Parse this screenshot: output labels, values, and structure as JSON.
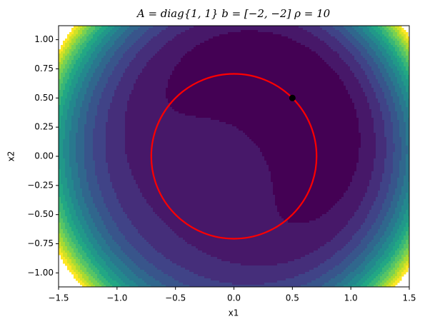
{
  "chart_data": {
    "type": "contour",
    "title": "A = diag{1, 1}      b = [−2, −2]      ρ = 10",
    "x_label": "x1",
    "y_label": "x2",
    "xlim": [
      -1.5,
      1.5
    ],
    "ylim": [
      -1.12,
      1.12
    ],
    "xticks": [
      {
        "value": -1.5,
        "label": "−1.5"
      },
      {
        "value": -1,
        "label": "−1.0"
      },
      {
        "value": -0.5,
        "label": "−0.5"
      },
      {
        "value": 0,
        "label": "0.0"
      },
      0.5,
      {
        "value": 1,
        "label": "1.0"
      },
      1.5
    ],
    "yticks": [
      {
        "value": -1,
        "label": "−1.00"
      },
      {
        "value": -0.75,
        "label": "−0.75"
      },
      {
        "value": -0.5,
        "label": "−0.50"
      },
      {
        "value": -0.25,
        "label": "−0.25"
      },
      {
        "value": 0,
        "label": "0.00"
      },
      0.25,
      {
        "value": 0.5,
        "label": "0.50"
      },
      0.75,
      {
        "value": 1,
        "label": "1.00"
      }
    ],
    "circle": {
      "center": [
        0,
        0
      ],
      "radius": 0.707,
      "color": "#ff0000"
    },
    "point": {
      "x": 0.5,
      "y": 0.5,
      "color": "#000000"
    }
  }
}
